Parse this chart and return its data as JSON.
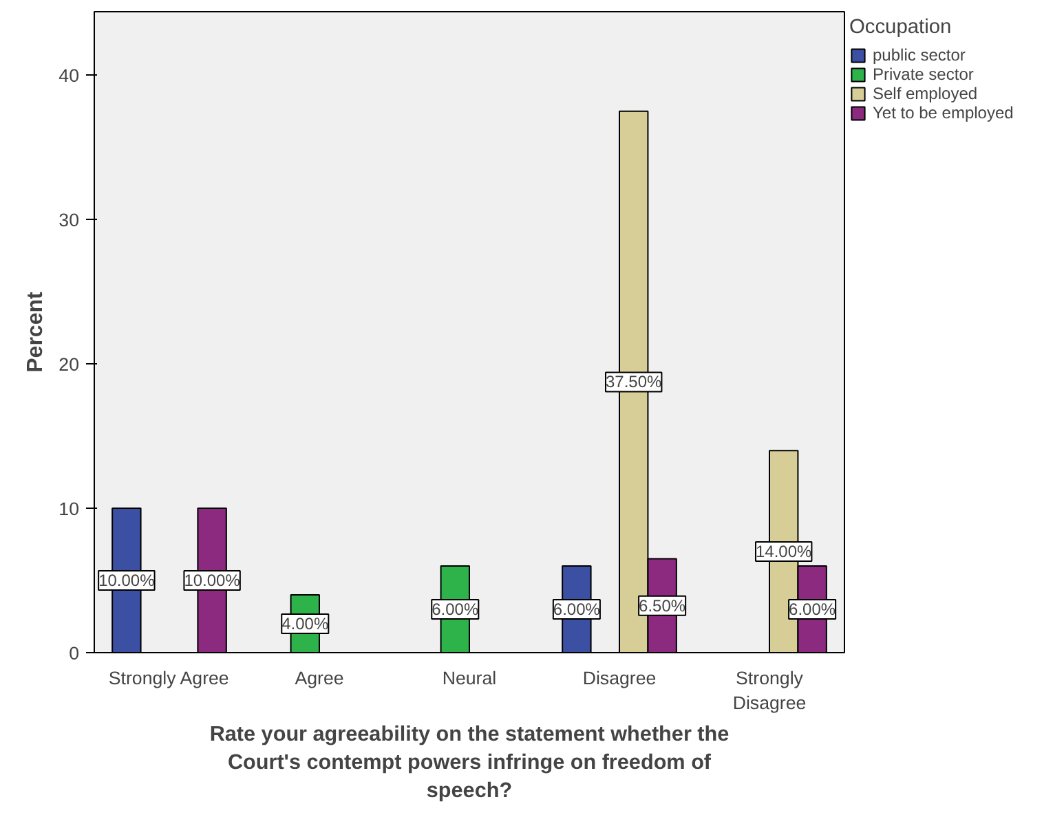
{
  "chart_data": {
    "type": "bar",
    "xlabel": "Rate your agreeability on the statement whether the Court's contempt powers infringe on freedom of speech?",
    "ylabel": "Percent",
    "legend_title": "Occupation",
    "legend": "right",
    "grid": false,
    "categories": [
      "Strongly Agree",
      "Agree",
      "Neural",
      "Disagree",
      "Strongly Disagree"
    ],
    "ylim": [
      0,
      44.4
    ],
    "yticks": [
      0,
      10,
      20,
      30,
      40
    ],
    "series": [
      {
        "name": "public sector",
        "color": "#3b4fa3",
        "values": [
          10,
          null,
          null,
          6,
          null
        ],
        "value_labels": [
          "10.00%",
          null,
          null,
          "6.00%",
          null
        ]
      },
      {
        "name": "Private sector",
        "color": "#2db34a",
        "values": [
          null,
          4,
          6,
          null,
          null
        ],
        "value_labels": [
          null,
          "4.00%",
          "6.00%",
          null,
          null
        ]
      },
      {
        "name": "Self employed",
        "color": "#d6cd97",
        "values": [
          null,
          null,
          null,
          37.5,
          14
        ],
        "value_labels": [
          null,
          null,
          null,
          "37.50%",
          "14.00%"
        ]
      },
      {
        "name": "Yet to be employed",
        "color": "#8b2a7e",
        "values": [
          10,
          null,
          null,
          6.5,
          6
        ],
        "value_labels": [
          "10.00%",
          null,
          null,
          "6.50%",
          "6.00%"
        ]
      }
    ]
  }
}
